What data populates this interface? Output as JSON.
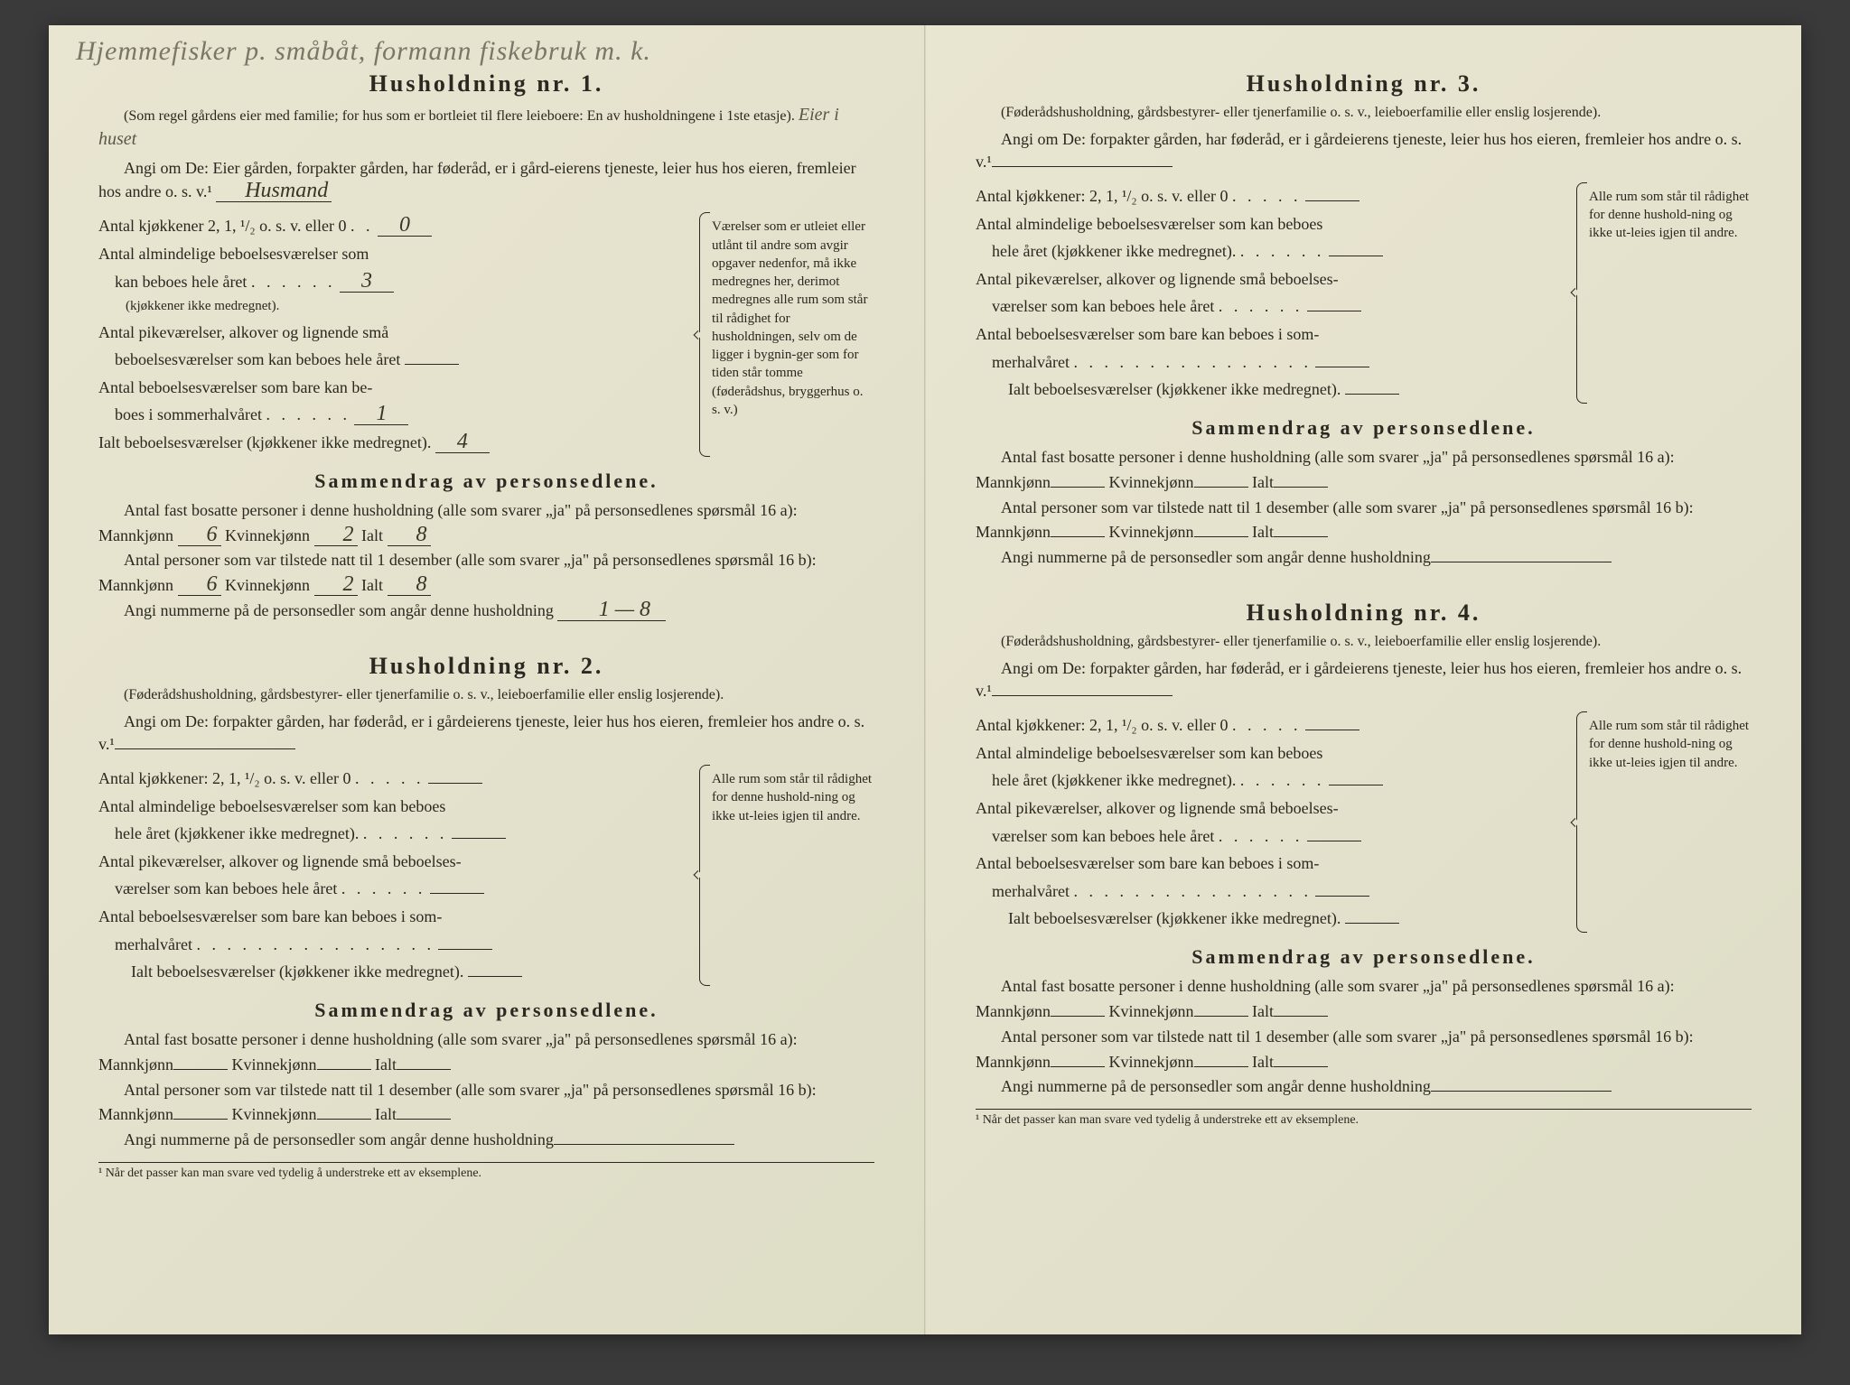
{
  "handwriting_top": "Hjemmefisker p. småbåt, formann fiskebruk m. k.",
  "households": [
    {
      "title": "Husholdning nr. 1.",
      "sub_note": "(Som regel gårdens eier med familie; for hus som er bortleiet til flere leieboere: En av husholdningene i 1ste etasje).",
      "hw_after_sub": "Eier i huset",
      "intro": "Angi om De: Eier gården, forpakter gården, har føderåd, er i gård-eierens tjeneste, leier hus hos eieren, fremleier hos andre o. s. v.¹",
      "intro_hw": "Husmand",
      "lines": {
        "l1": "Antal kjøkkener 2, 1, ¹/₂ o. s. v. eller 0",
        "l1v": "0",
        "l2a": "Antal almindelige beboelsesværelser som",
        "l2b": "kan beboes hele året",
        "l2v": "3",
        "l2note": "(kjøkkener ikke medregnet).",
        "l3a": "Antal pikeværelser, alkover og lignende små",
        "l3b": "beboelsesværelser som kan beboes hele året",
        "l3v": "",
        "l4a": "Antal beboelsesværelser som bare kan be-",
        "l4b": "boes i sommerhalvåret",
        "l4v": "1",
        "l5": "Ialt beboelsesværelser (kjøkkener ikke medregnet).",
        "l5v": "4"
      },
      "side_note": "Værelser som er utleiet eller utlånt til andre som avgir opgaver nedenfor, må ikke medregnes her, derimot medregnes alle rum som står til rådighet for husholdningen, selv om de ligger i bygnin-ger som for tiden står tomme (føderådshus, bryggerhus o. s. v.)",
      "summary_title": "Sammendrag av personsedlene.",
      "s1": "Antal fast bosatte personer i denne husholdning (alle som svarer „ja\" på personsedlenes spørsmål 16 a): Mannkjønn",
      "s1_m": "6",
      "s1_mid": "Kvinnekjønn",
      "s1_k": "2",
      "s1_end": "Ialt",
      "s1_t": "8",
      "s2": "Antal personer som var tilstede natt til 1 desember (alle som svarer „ja\" på personsedlenes spørsmål 16 b): Mannkjønn",
      "s2_m": "6",
      "s2_k": "2",
      "s2_t": "8",
      "s3": "Angi nummerne på de personsedler som angår denne husholdning",
      "s3_v": "1 — 8"
    },
    {
      "title": "Husholdning nr. 2.",
      "sub_note": "(Føderådshusholdning, gårdsbestyrer- eller tjenerfamilie o. s. v., leieboerfamilie eller enslig losjerende).",
      "intro": "Angi om De: forpakter gården, har føderåd, er i gårdeierens tjeneste, leier hus hos eieren, fremleier hos andre o. s. v.¹",
      "lines": {
        "l1": "Antal kjøkkener: 2, 1, ¹/₂ o. s. v. eller 0",
        "l2a": "Antal almindelige beboelsesværelser som kan beboes",
        "l2b": "hele året (kjøkkener ikke medregnet).",
        "l3a": "Antal pikeværelser, alkover og lignende små beboelses-",
        "l3b": "værelser som kan beboes hele året",
        "l4a": "Antal beboelsesværelser som bare kan beboes i som-",
        "l4b": "merhalvåret",
        "l5": "Ialt beboelsesværelser (kjøkkener ikke medregnet)."
      },
      "side_note": "Alle rum som står til rådighet for denne hushold-ning og ikke ut-leies igjen til andre.",
      "summary_title": "Sammendrag av personsedlene.",
      "s1": "Antal fast bosatte personer i denne husholdning (alle som svarer „ja\" på personsedlenes spørsmål 16 a): Mannkjønn",
      "s1_mid": "Kvinnekjønn",
      "s1_end": "Ialt",
      "s2": "Antal personer som var tilstede natt til 1 desember (alle som svarer „ja\" på personsedlenes spørsmål 16 b): Mannkjønn",
      "s3": "Angi nummerne på de personsedler som angår denne husholdning",
      "footnote": "¹ Når det passer kan man svare ved tydelig å understreke ett av eksemplene."
    },
    {
      "title": "Husholdning nr. 3.",
      "sub_note": "(Føderådshusholdning, gårdsbestyrer- eller tjenerfamilie o. s. v., leieboerfamilie eller enslig losjerende).",
      "intro": "Angi om De: forpakter gården, har føderåd, er i gårdeierens tjeneste, leier hus hos eieren, fremleier hos andre o. s. v.¹",
      "lines": {
        "l1": "Antal kjøkkener: 2, 1, ¹/₂ o. s. v. eller 0",
        "l2a": "Antal almindelige beboelsesværelser som kan beboes",
        "l2b": "hele året (kjøkkener ikke medregnet).",
        "l3a": "Antal pikeværelser, alkover og lignende små beboelses-",
        "l3b": "værelser som kan beboes hele året",
        "l4a": "Antal beboelsesværelser som bare kan beboes i som-",
        "l4b": "merhalvåret",
        "l5": "Ialt beboelsesværelser (kjøkkener ikke medregnet)."
      },
      "side_note": "Alle rum som står til rådighet for denne hushold-ning og ikke ut-leies igjen til andre.",
      "summary_title": "Sammendrag av personsedlene.",
      "s1": "Antal fast bosatte personer i denne husholdning (alle som svarer „ja\" på personsedlenes spørsmål 16 a): Mannkjønn",
      "s1_mid": "Kvinnekjønn",
      "s1_end": "Ialt",
      "s2": "Antal personer som var tilstede natt til 1 desember (alle som svarer „ja\" på personsedlenes spørsmål 16 b): Mannkjønn",
      "s3": "Angi nummerne på de personsedler som angår denne husholdning"
    },
    {
      "title": "Husholdning nr. 4.",
      "sub_note": "(Føderådshusholdning, gårdsbestyrer- eller tjenerfamilie o. s. v., leieboerfamilie eller enslig losjerende).",
      "intro": "Angi om De: forpakter gården, har føderåd, er i gårdeierens tjeneste, leier hus hos eieren, fremleier hos andre o. s. v.¹",
      "lines": {
        "l1": "Antal kjøkkener: 2, 1, ¹/₂ o. s. v. eller 0",
        "l2a": "Antal almindelige beboelsesværelser som kan beboes",
        "l2b": "hele året (kjøkkener ikke medregnet).",
        "l3a": "Antal pikeværelser, alkover og lignende små beboelses-",
        "l3b": "værelser som kan beboes hele året",
        "l4a": "Antal beboelsesværelser som bare kan beboes i som-",
        "l4b": "merhalvåret",
        "l5": "Ialt beboelsesværelser (kjøkkener ikke medregnet)."
      },
      "side_note": "Alle rum som står til rådighet for denne hushold-ning og ikke ut-leies igjen til andre.",
      "summary_title": "Sammendrag av personsedlene.",
      "s1": "Antal fast bosatte personer i denne husholdning (alle som svarer „ja\" på personsedlenes spørsmål 16 a): Mannkjønn",
      "s1_mid": "Kvinnekjønn",
      "s1_end": "Ialt",
      "s2": "Antal personer som var tilstede natt til 1 desember (alle som svarer „ja\" på personsedlenes spørsmål 16 b): Mannkjønn",
      "s3": "Angi nummerne på de personsedler som angår denne husholdning",
      "footnote": "¹ Når det passer kan man svare ved tydelig å understreke ett av eksemplene."
    }
  ],
  "dots": ". . . . . .",
  "dots_long": ". . . . . . . . . . . . . . . ."
}
